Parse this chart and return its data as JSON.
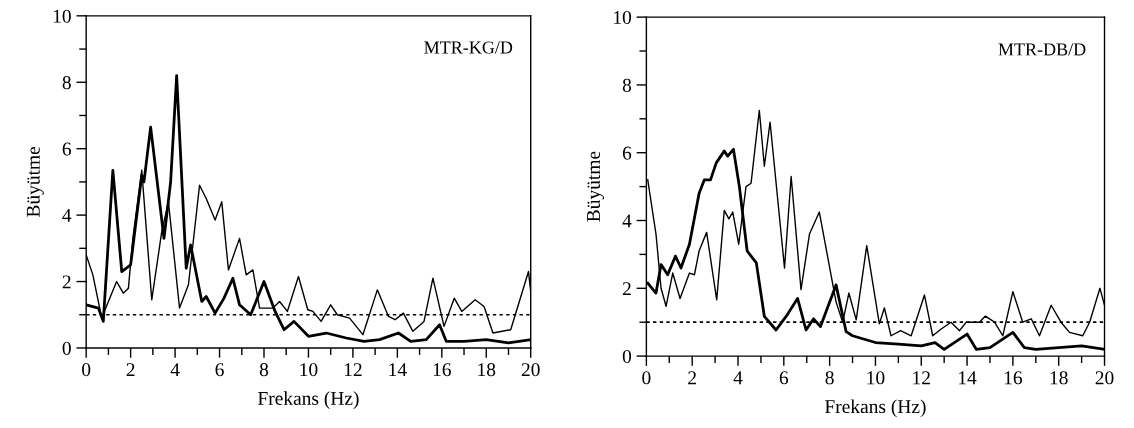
{
  "chart_data": [
    {
      "type": "line",
      "xlabel": "Frekans (Hz)",
      "ylabel": "Büyütme",
      "annotations": [
        "MTR-KG/D"
      ],
      "xlim": [
        0,
        20
      ],
      "ylim": [
        0,
        10
      ],
      "xticks": [
        0,
        2,
        4,
        6,
        8,
        10,
        12,
        14,
        16,
        18,
        20
      ],
      "yticks": [
        0,
        2,
        4,
        6,
        8,
        10
      ],
      "grid": false,
      "legend": false,
      "marker": "none",
      "line_style": "solid",
      "ref_lines": [
        {
          "axis": "y",
          "value": 1,
          "color": "#000000",
          "line_style": "dotted"
        }
      ],
      "series": [
        {
          "color": "#000000",
          "x": [
            0,
            0.55,
            0.77,
            1.2,
            1.6,
            2.0,
            2.5,
            2.6,
            2.9,
            3.5,
            3.8,
            4.07,
            4.5,
            4.7,
            5.2,
            5.4,
            5.8,
            6.2,
            6.6,
            6.9,
            7.4,
            8.0,
            8.5,
            8.9,
            9.35,
            10.0,
            10.8,
            11.7,
            12.5,
            13.2,
            14.05,
            14.6,
            15.3,
            15.9,
            16.2,
            17.0,
            18.0,
            19.0,
            20.0
          ],
          "values": [
            1.3,
            1.2,
            0.8,
            5.35,
            2.3,
            2.5,
            5.2,
            5.0,
            6.65,
            3.3,
            5.0,
            8.2,
            2.4,
            3.1,
            1.4,
            1.55,
            1.05,
            1.5,
            2.1,
            1.3,
            1.0,
            2.0,
            1.1,
            0.55,
            0.8,
            0.35,
            0.45,
            0.3,
            0.2,
            0.25,
            0.45,
            0.2,
            0.25,
            0.7,
            0.2,
            0.2,
            0.25,
            0.15,
            0.25
          ]
        },
        {
          "color": "#000000",
          "x": [
            0,
            0.3,
            0.7,
            1.0,
            1.37,
            1.67,
            1.9,
            2.1,
            2.5,
            2.95,
            3.4,
            3.7,
            4.2,
            4.6,
            4.8,
            5.1,
            5.4,
            5.8,
            6.1,
            6.4,
            6.9,
            7.2,
            7.5,
            7.8,
            8.4,
            8.7,
            9.05,
            9.55,
            9.97,
            10.2,
            10.57,
            11.0,
            11.3,
            11.85,
            12.45,
            13.1,
            13.6,
            13.9,
            14.27,
            14.7,
            15.2,
            15.6,
            16.1,
            16.56,
            16.9,
            17.5,
            17.9,
            18.3,
            19.1,
            19.9,
            20.0
          ],
          "values": [
            2.8,
            2.2,
            0.9,
            1.4,
            2.0,
            1.65,
            1.8,
            3.3,
            5.35,
            1.45,
            3.5,
            4.4,
            1.2,
            1.9,
            3.1,
            4.9,
            4.5,
            3.85,
            4.4,
            2.35,
            3.3,
            2.2,
            2.35,
            1.2,
            1.2,
            1.4,
            1.1,
            2.15,
            1.15,
            1.1,
            0.8,
            1.3,
            1.0,
            0.9,
            0.4,
            1.75,
            0.95,
            0.85,
            1.05,
            0.5,
            0.8,
            2.1,
            0.65,
            1.5,
            1.1,
            1.45,
            1.25,
            0.45,
            0.55,
            2.3,
            1.7
          ]
        }
      ]
    },
    {
      "type": "line",
      "xlabel": "Frekans (Hz)",
      "ylabel": "Büyütme",
      "annotations": [
        "MTR-DB/D"
      ],
      "xlim": [
        0,
        20
      ],
      "ylim": [
        0,
        10
      ],
      "xticks": [
        0,
        2,
        4,
        6,
        8,
        10,
        12,
        14,
        16,
        18,
        20
      ],
      "yticks": [
        0,
        2,
        4,
        6,
        8,
        10
      ],
      "grid": false,
      "legend": false,
      "marker": "none",
      "line_style": "solid",
      "ref_lines": [
        {
          "axis": "y",
          "value": 1,
          "color": "#000000",
          "line_style": "dotted"
        }
      ],
      "series": [
        {
          "color": "#000000",
          "x": [
            0.06,
            0.42,
            0.64,
            0.93,
            1.27,
            1.51,
            1.88,
            2.3,
            2.53,
            2.8,
            3.05,
            3.4,
            3.55,
            3.8,
            4.06,
            4.4,
            4.8,
            5.15,
            5.66,
            6.1,
            6.6,
            6.97,
            7.3,
            7.6,
            8.28,
            8.72,
            9.0,
            10.0,
            11.0,
            12.0,
            12.6,
            13.0,
            14.0,
            14.4,
            15.0,
            16.0,
            16.5,
            17.0,
            18.0,
            19.0,
            20.0
          ],
          "values": [
            2.15,
            1.86,
            2.7,
            2.4,
            2.95,
            2.6,
            3.3,
            4.8,
            5.2,
            5.2,
            5.7,
            6.05,
            5.9,
            6.1,
            5.0,
            3.1,
            2.75,
            1.17,
            0.77,
            1.17,
            1.7,
            0.77,
            1.1,
            0.87,
            2.1,
            0.72,
            0.6,
            0.4,
            0.35,
            0.3,
            0.4,
            0.2,
            0.65,
            0.2,
            0.25,
            0.7,
            0.25,
            0.2,
            0.25,
            0.3,
            0.2
          ]
        },
        {
          "color": "#000000",
          "x": [
            0.06,
            0.42,
            0.64,
            0.86,
            1.15,
            1.47,
            1.88,
            2.1,
            2.3,
            2.63,
            3.07,
            3.4,
            3.6,
            3.77,
            4.03,
            4.35,
            4.57,
            4.93,
            5.15,
            5.4,
            6.03,
            6.32,
            6.75,
            7.12,
            7.55,
            8.28,
            8.57,
            8.84,
            9.16,
            9.62,
            10.17,
            10.39,
            10.68,
            11.1,
            11.56,
            12.14,
            12.5,
            12.87,
            13.3,
            13.67,
            13.96,
            14.54,
            14.8,
            15.2,
            15.56,
            16.0,
            16.43,
            16.8,
            17.16,
            17.67,
            18.1,
            18.47,
            19.05,
            19.35,
            19.8,
            20.0
          ],
          "values": [
            5.2,
            3.6,
            2.0,
            1.47,
            2.45,
            1.7,
            2.45,
            2.4,
            3.1,
            3.65,
            1.66,
            4.3,
            4.05,
            4.25,
            3.3,
            5.0,
            5.1,
            7.25,
            5.6,
            6.9,
            2.6,
            5.3,
            1.96,
            3.6,
            4.25,
            1.6,
            1.0,
            1.86,
            1.07,
            3.26,
            0.95,
            1.42,
            0.6,
            0.75,
            0.6,
            1.8,
            0.6,
            0.8,
            1.0,
            0.75,
            1.0,
            1.0,
            1.18,
            1.0,
            0.6,
            1.9,
            1.0,
            1.1,
            0.6,
            1.5,
            1.0,
            0.7,
            0.6,
            1.0,
            2.0,
            1.5
          ]
        }
      ]
    }
  ]
}
